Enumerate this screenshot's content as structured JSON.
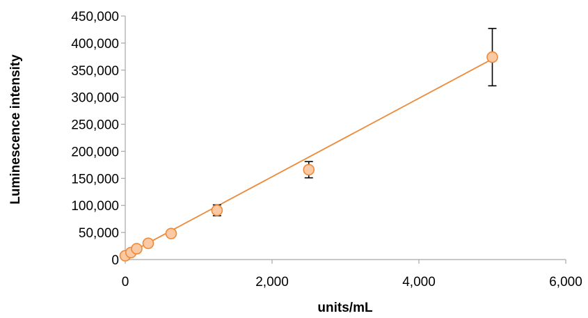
{
  "chart_data": {
    "type": "scatter",
    "title": "",
    "xlabel": "units/mL",
    "ylabel": "Luminescence intensity",
    "xlim": [
      0,
      6000
    ],
    "ylim": [
      0,
      450000
    ],
    "x_ticks": [
      0,
      2000,
      4000,
      6000
    ],
    "x_tick_labels": [
      "0",
      "2,000",
      "4,000",
      "6,000"
    ],
    "y_ticks": [
      0,
      50000,
      100000,
      150000,
      200000,
      250000,
      300000,
      350000,
      400000,
      450000
    ],
    "y_tick_labels": [
      "0",
      "50,000",
      "100,000",
      "150,000",
      "200,000",
      "250,000",
      "300,000",
      "350,000",
      "400,000",
      "450,000"
    ],
    "grid": false,
    "legend": "none",
    "series": [
      {
        "points": [
          {
            "x": 0,
            "y": 7000,
            "err": 0
          },
          {
            "x": 78,
            "y": 13000,
            "err": 0
          },
          {
            "x": 156,
            "y": 20000,
            "err": 0
          },
          {
            "x": 313,
            "y": 30000,
            "err": 0
          },
          {
            "x": 625,
            "y": 48000,
            "err": 0
          },
          {
            "x": 1250,
            "y": 91000,
            "err": 10000
          },
          {
            "x": 2500,
            "y": 166000,
            "err": 15000
          },
          {
            "x": 5000,
            "y": 374000,
            "err": 53000
          }
        ],
        "marker_fill": "#fbc9a4",
        "marker_stroke": "#ed8a3a"
      }
    ],
    "trendline": {
      "type": "linear",
      "slope": 72.5,
      "intercept": 8000,
      "color": "#ed8a3a"
    },
    "error_bar_color": "#000000",
    "axis_color": "#a6a6a6"
  }
}
